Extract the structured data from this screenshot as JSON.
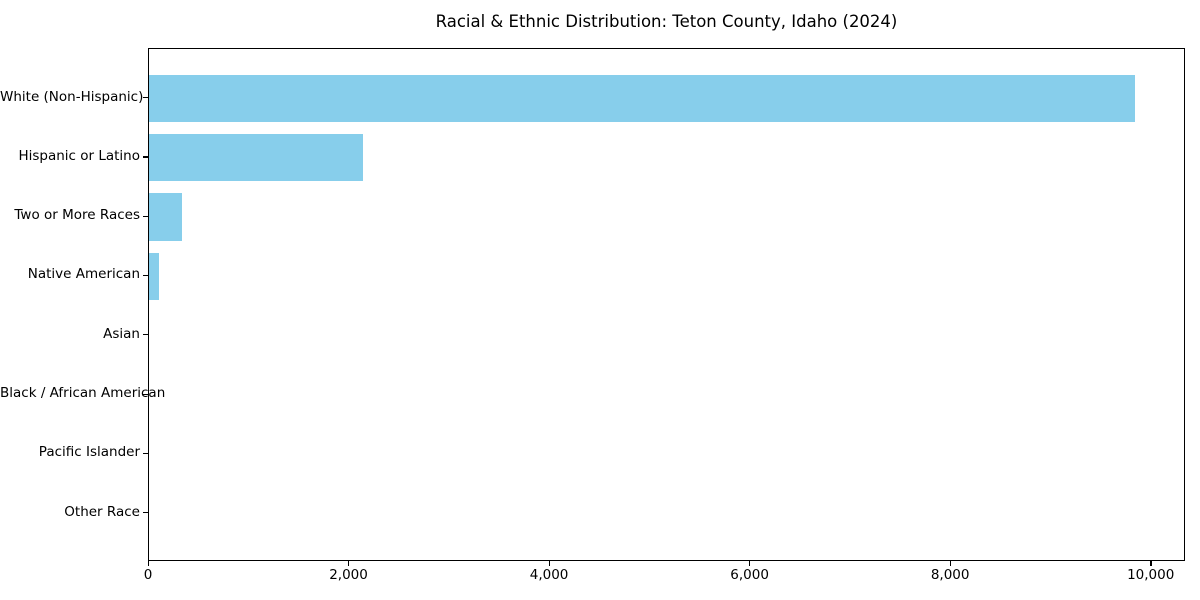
{
  "title": "Racial & Ethnic Distribution: Teton County, Idaho (2024)",
  "chart_data": {
    "type": "bar",
    "orientation": "horizontal",
    "title": "Racial & Ethnic Distribution: Teton County, Idaho (2024)",
    "categories": [
      "White (Non-Hispanic)",
      "Hispanic or Latino",
      "Two or More Races",
      "Native American",
      "Asian",
      "Black / African American",
      "Pacific Islander",
      "Other Race"
    ],
    "values": [
      9850,
      2140,
      330,
      100,
      0,
      0,
      0,
      0
    ],
    "xlabel": "",
    "ylabel": "",
    "xlim": [
      0,
      10342
    ],
    "xticks": {
      "values": [
        0,
        2000,
        4000,
        6000,
        8000,
        10000
      ],
      "labels": [
        "0",
        "2,000",
        "4,000",
        "6,000",
        "8,000",
        "10,000"
      ]
    },
    "bar_color": "#87CEEB",
    "axis_color": "#000000",
    "text_color": "#000000",
    "background_color": "#ffffff",
    "grid": false,
    "legend_position": "none"
  }
}
